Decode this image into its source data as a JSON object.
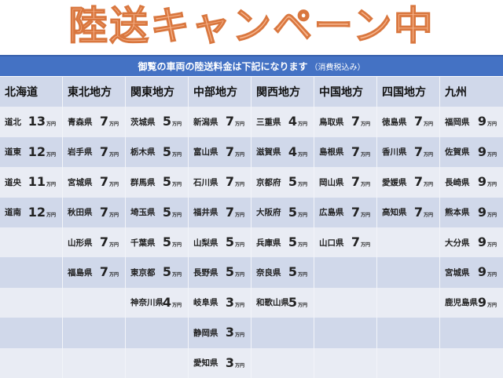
{
  "title": "陸送キャンペーン中",
  "banner": {
    "text": "御覧の車両の陸送料金は下記になります",
    "note": "（消費税込み）"
  },
  "unit": "万円",
  "regions": [
    {
      "name": "北海道",
      "items": [
        {
          "pref": "道北",
          "price": "13"
        },
        {
          "pref": "道東",
          "price": "12"
        },
        {
          "pref": "道央",
          "price": "11"
        },
        {
          "pref": "道南",
          "price": "12"
        }
      ]
    },
    {
      "name": "東北地方",
      "items": [
        {
          "pref": "青森県",
          "price": "7"
        },
        {
          "pref": "岩手県",
          "price": "7"
        },
        {
          "pref": "宮城県",
          "price": "7"
        },
        {
          "pref": "秋田県",
          "price": "7"
        },
        {
          "pref": "山形県",
          "price": "7"
        },
        {
          "pref": "福島県",
          "price": "7"
        }
      ]
    },
    {
      "name": "関東地方",
      "items": [
        {
          "pref": "茨城県",
          "price": "5"
        },
        {
          "pref": "栃木県",
          "price": "5"
        },
        {
          "pref": "群馬県",
          "price": "5"
        },
        {
          "pref": "埼玉県",
          "price": "5"
        },
        {
          "pref": "千葉県",
          "price": "5"
        },
        {
          "pref": "東京都",
          "price": "5"
        },
        {
          "pref": "神奈川県",
          "price": "4"
        }
      ]
    },
    {
      "name": "中部地方",
      "items": [
        {
          "pref": "新潟県",
          "price": "7"
        },
        {
          "pref": "富山県",
          "price": "7"
        },
        {
          "pref": "石川県",
          "price": "7"
        },
        {
          "pref": "福井県",
          "price": "7"
        },
        {
          "pref": "山梨県",
          "price": "5"
        },
        {
          "pref": "長野県",
          "price": "5"
        },
        {
          "pref": "岐阜県",
          "price": "3"
        },
        {
          "pref": "静岡県",
          "price": "3"
        },
        {
          "pref": "愛知県",
          "price": "3"
        }
      ]
    },
    {
      "name": "関西地方",
      "items": [
        {
          "pref": "三重県",
          "price": "4"
        },
        {
          "pref": "滋賀県",
          "price": "4"
        },
        {
          "pref": "京都府",
          "price": "5"
        },
        {
          "pref": "大阪府",
          "price": "5"
        },
        {
          "pref": "兵庫県",
          "price": "5"
        },
        {
          "pref": "奈良県",
          "price": "5"
        },
        {
          "pref": "和歌山県",
          "price": "5"
        }
      ]
    },
    {
      "name": "中国地方",
      "items": [
        {
          "pref": "鳥取県",
          "price": "7"
        },
        {
          "pref": "島根県",
          "price": "7"
        },
        {
          "pref": "岡山県",
          "price": "7"
        },
        {
          "pref": "広島県",
          "price": "7"
        },
        {
          "pref": "山口県",
          "price": "7"
        }
      ]
    },
    {
      "name": "四国地方",
      "items": [
        {
          "pref": "徳島県",
          "price": "7"
        },
        {
          "pref": "香川県",
          "price": "7"
        },
        {
          "pref": "愛媛県",
          "price": "7"
        },
        {
          "pref": "高知県",
          "price": "7"
        }
      ]
    },
    {
      "name": "九州",
      "items": [
        {
          "pref": "福岡県",
          "price": "9"
        },
        {
          "pref": "佐賀県",
          "price": "9"
        },
        {
          "pref": "長崎県",
          "price": "9"
        },
        {
          "pref": "熊本県",
          "price": "9"
        },
        {
          "pref": "大分県",
          "price": "9"
        },
        {
          "pref": "宮城県",
          "price": "9"
        },
        {
          "pref": "鹿児島県",
          "price": "9"
        }
      ]
    }
  ],
  "colors": {
    "banner": "#4472c4",
    "title": "#f7b48c",
    "row_dark": "#d0d8ea",
    "row_light": "#e9ecf4"
  }
}
